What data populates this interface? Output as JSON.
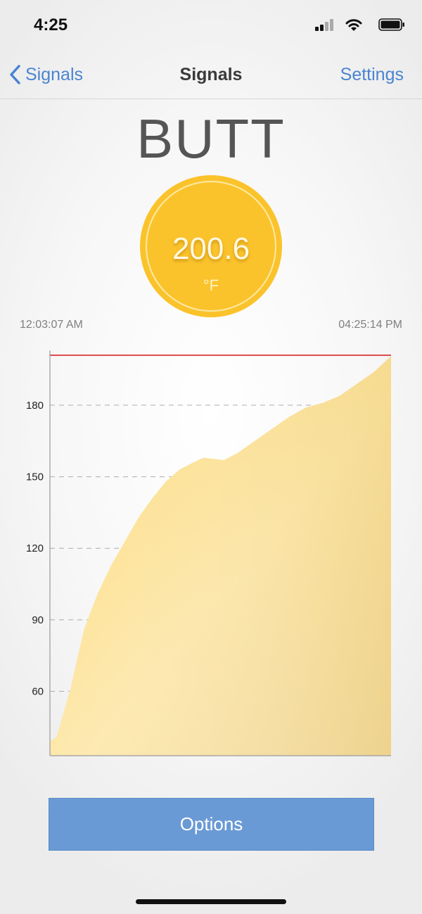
{
  "status_bar": {
    "time": "4:25",
    "icons": [
      "cellular-signal-icon",
      "wifi-icon",
      "battery-icon"
    ]
  },
  "nav": {
    "back_label": "Signals",
    "title": "Signals",
    "settings_label": "Settings"
  },
  "probe": {
    "name": "BUTT",
    "temperature": "200.6",
    "unit": "°F",
    "accent_color": "#fbc32b"
  },
  "time_range": {
    "start": "12:03:07 AM",
    "end": "04:25:14 PM"
  },
  "chart_data": {
    "type": "area",
    "title": "",
    "xlabel": "",
    "ylabel": "",
    "ylim": [
      33,
      203
    ],
    "y_ticks": [
      60,
      90,
      120,
      150,
      180
    ],
    "alarm_line": 201,
    "grid": true,
    "x_range": [
      "12:03:07 AM",
      "04:25:14 PM"
    ],
    "series": [
      {
        "color": "#fbd467",
        "points": [
          [
            0,
            39
          ],
          [
            0.02,
            41
          ],
          [
            0.06,
            61
          ],
          [
            0.1,
            86
          ],
          [
            0.14,
            101
          ],
          [
            0.18,
            113
          ],
          [
            0.22,
            123
          ],
          [
            0.26,
            133
          ],
          [
            0.3,
            141
          ],
          [
            0.34,
            148
          ],
          [
            0.38,
            153
          ],
          [
            0.42,
            156
          ],
          [
            0.45,
            158
          ],
          [
            0.48,
            157.5
          ],
          [
            0.51,
            157
          ],
          [
            0.55,
            160
          ],
          [
            0.6,
            165
          ],
          [
            0.65,
            170
          ],
          [
            0.7,
            175
          ],
          [
            0.75,
            179
          ],
          [
            0.8,
            181
          ],
          [
            0.85,
            184
          ],
          [
            0.9,
            189
          ],
          [
            0.95,
            194
          ],
          [
            1.0,
            200.6
          ]
        ]
      }
    ]
  },
  "options": {
    "label": "Options",
    "color": "#6a9ad5"
  }
}
